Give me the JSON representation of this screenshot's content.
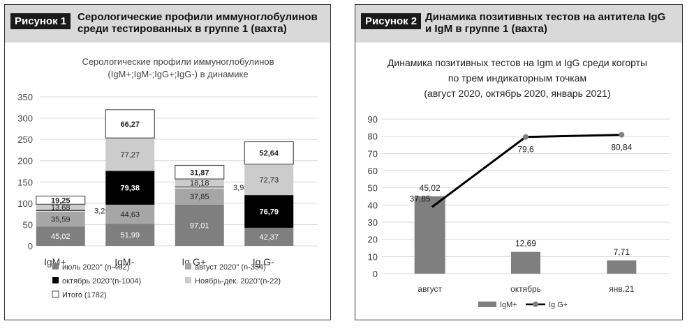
{
  "panel1": {
    "badge": "Рисунок 1",
    "heading_line1": "Серологические профили иммуноглобулинов",
    "heading_line2": "среди тестированных в группе 1 (вахта)"
  },
  "panel2": {
    "badge": "Рисунок 2",
    "heading_line1": "Динамика позитивных тестов на антитела IgG",
    "heading_line2": "и IgM в группе 1 (вахта)"
  },
  "chart_data": [
    {
      "type": "bar",
      "title_lines": [
        "Серологические профили иммуноглобулинов",
        "(IgM+;IgM-;IgG+;IgG-) в динамике"
      ],
      "categories": [
        "IgM+",
        "IgM-",
        "Ig G+",
        "Ig G-"
      ],
      "stacked": true,
      "ylim": [
        0,
        350
      ],
      "yticks": [
        0,
        50,
        100,
        150,
        200,
        250,
        300,
        350
      ],
      "grid": true,
      "legend_position": "bottom",
      "series": [
        {
          "name": "июль 2020\" (n-402)",
          "color": "#7f7f7f",
          "values": [
            45.02,
            51.99,
            97.01,
            42.37
          ]
        },
        {
          "name": "август 2020\" (n-354)",
          "color": "#a6a6a6",
          "values": [
            35.59,
            44.63,
            37.85,
            0
          ]
        },
        {
          "name": "октябрь 2020\"(n-1004)",
          "color": "#000000",
          "values": [
            3.29,
            79.38,
            3.98,
            76.79
          ]
        },
        {
          "name": "Ноябрь-дек. 2020\"(n-22)",
          "color": "#cccccc",
          "values": [
            13.68,
            77.27,
            18.18,
            72.73
          ]
        },
        {
          "name": "Итого     (1782)",
          "color": "#ffffff",
          "values": [
            19.25,
            66.27,
            31.87,
            52.64
          ]
        }
      ],
      "data_labels": [
        [
          "45,02",
          "35,59",
          "3,29",
          "13,68",
          "19,25"
        ],
        [
          "51,99",
          "44,63",
          "79,38",
          "77,27",
          "66,27"
        ],
        [
          "97,01",
          "37,85",
          "3,98",
          "18,18",
          "31,87"
        ],
        [
          "42,37",
          "",
          "76,79",
          "72,73",
          "52,64"
        ]
      ]
    },
    {
      "type": "bar+line",
      "title_lines": [
        "Динамика позитивных тестов на Igm и IgG среди когорты",
        "по трем индикаторным точкам",
        "(август 2020, октябрь 2020, январь 2021)"
      ],
      "categories": [
        "август",
        "октябрь",
        "янв.21"
      ],
      "ylim": [
        0,
        90
      ],
      "yticks": [
        0,
        10,
        20,
        30,
        40,
        50,
        60,
        70,
        80,
        90
      ],
      "grid": true,
      "legend_position": "bottom",
      "series": [
        {
          "name": "IgM+",
          "type": "bar",
          "color": "#7f7f7f",
          "values": [
            45.02,
            12.69,
            7.71
          ],
          "labels": [
            "45,02",
            "12,69",
            "7,71"
          ]
        },
        {
          "name": "Ig G+",
          "type": "line",
          "color": "#000000",
          "marker_color": "#7f7f7f",
          "values": [
            37.85,
            79.6,
            80.84
          ],
          "labels": [
            "37,85",
            "79,6",
            "80,84"
          ]
        }
      ]
    }
  ]
}
